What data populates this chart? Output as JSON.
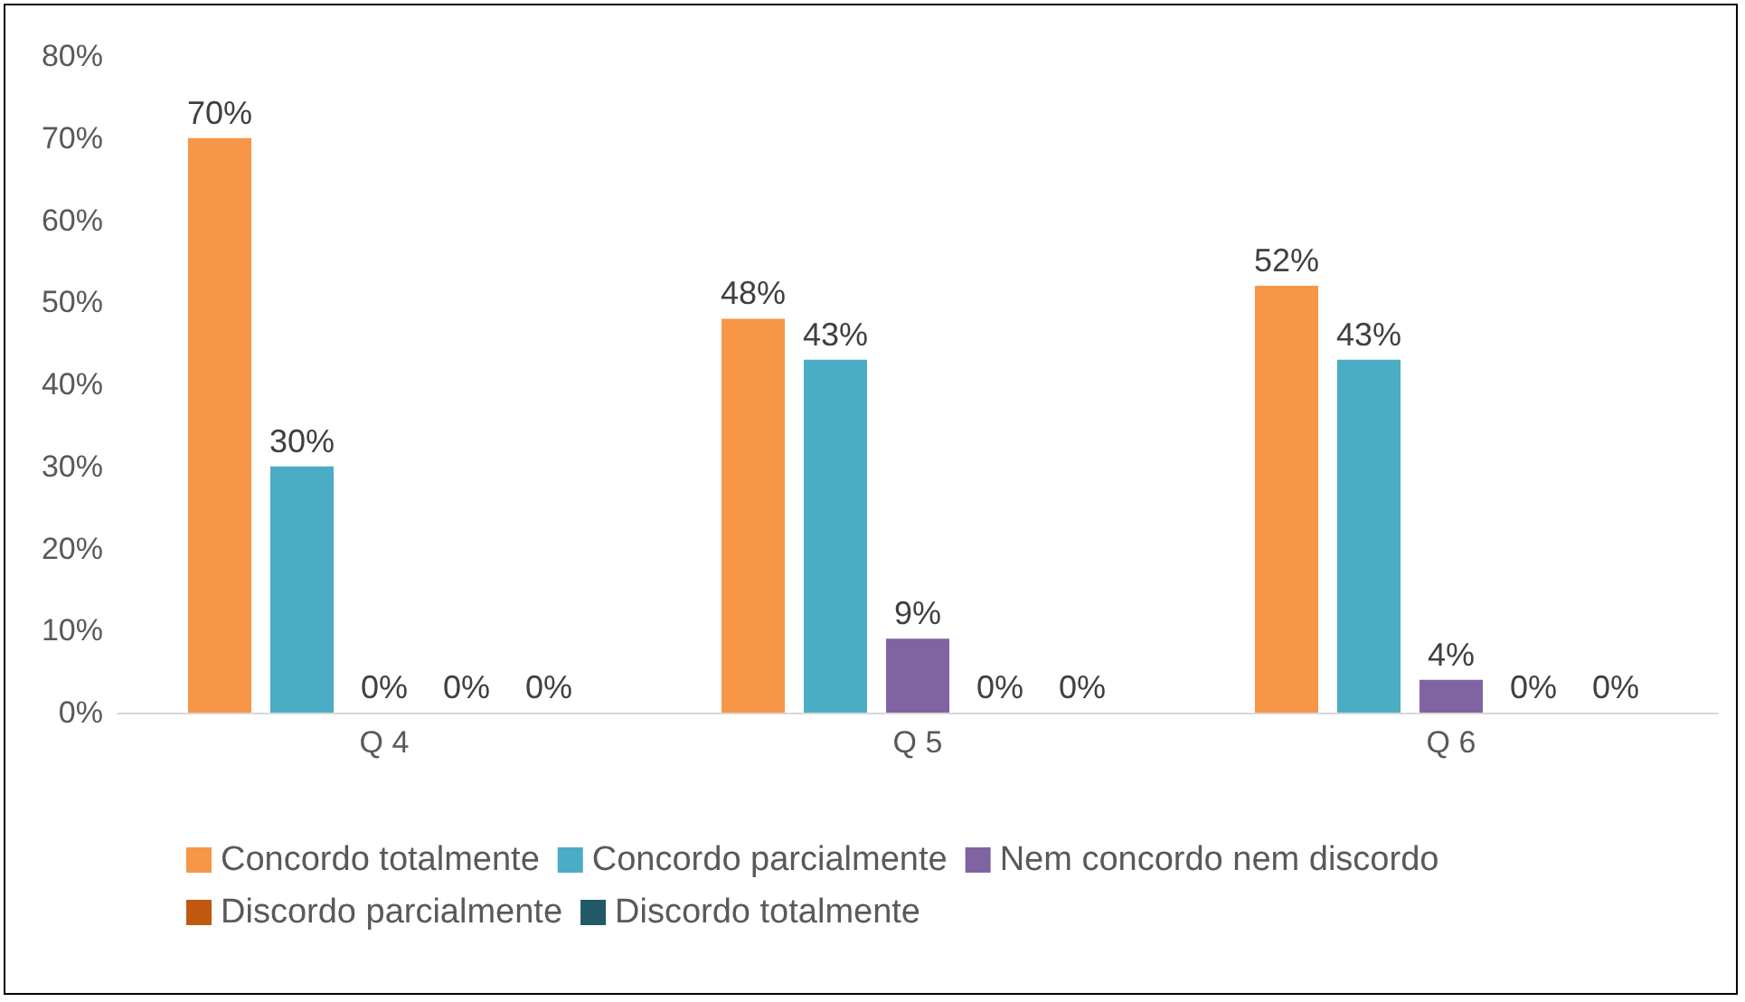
{
  "chart_data": {
    "type": "bar",
    "categories": [
      "Q 4",
      "Q 5",
      "Q 6"
    ],
    "series": [
      {
        "name": "Concordo totalmente",
        "color": "#f79646",
        "values": [
          70,
          48,
          52
        ]
      },
      {
        "name": "Concordo parcialmente",
        "color": "#4bacc6",
        "values": [
          30,
          43,
          43
        ]
      },
      {
        "name": "Nem concordo nem discordo",
        "color": "#8064a2",
        "values": [
          0,
          9,
          4
        ]
      },
      {
        "name": "Discordo parcialmente",
        "color": "#c0580f",
        "values": [
          0,
          0,
          0
        ]
      },
      {
        "name": "Discordo totalmente",
        "color": "#215968",
        "values": [
          0,
          0,
          0
        ]
      }
    ],
    "ylim": [
      0,
      80
    ],
    "yticks": [
      {
        "value": 0,
        "label": "0%"
      },
      {
        "value": 10,
        "label": "10%"
      },
      {
        "value": 20,
        "label": "20%"
      },
      {
        "value": 30,
        "label": "30%"
      },
      {
        "value": 40,
        "label": "40%"
      },
      {
        "value": 50,
        "label": "50%"
      },
      {
        "value": 60,
        "label": "60%"
      },
      {
        "value": 70,
        "label": "70%"
      },
      {
        "value": 80,
        "label": "80%"
      }
    ],
    "value_labels": [
      [
        "70%",
        "48%",
        "52%"
      ],
      [
        "30%",
        "43%",
        "43%"
      ],
      [
        "0%",
        "9%",
        "4%"
      ],
      [
        "0%",
        "0%",
        "0%"
      ],
      [
        "0%",
        "0%",
        "0%"
      ]
    ],
    "grid": false,
    "legend": "bottom"
  }
}
